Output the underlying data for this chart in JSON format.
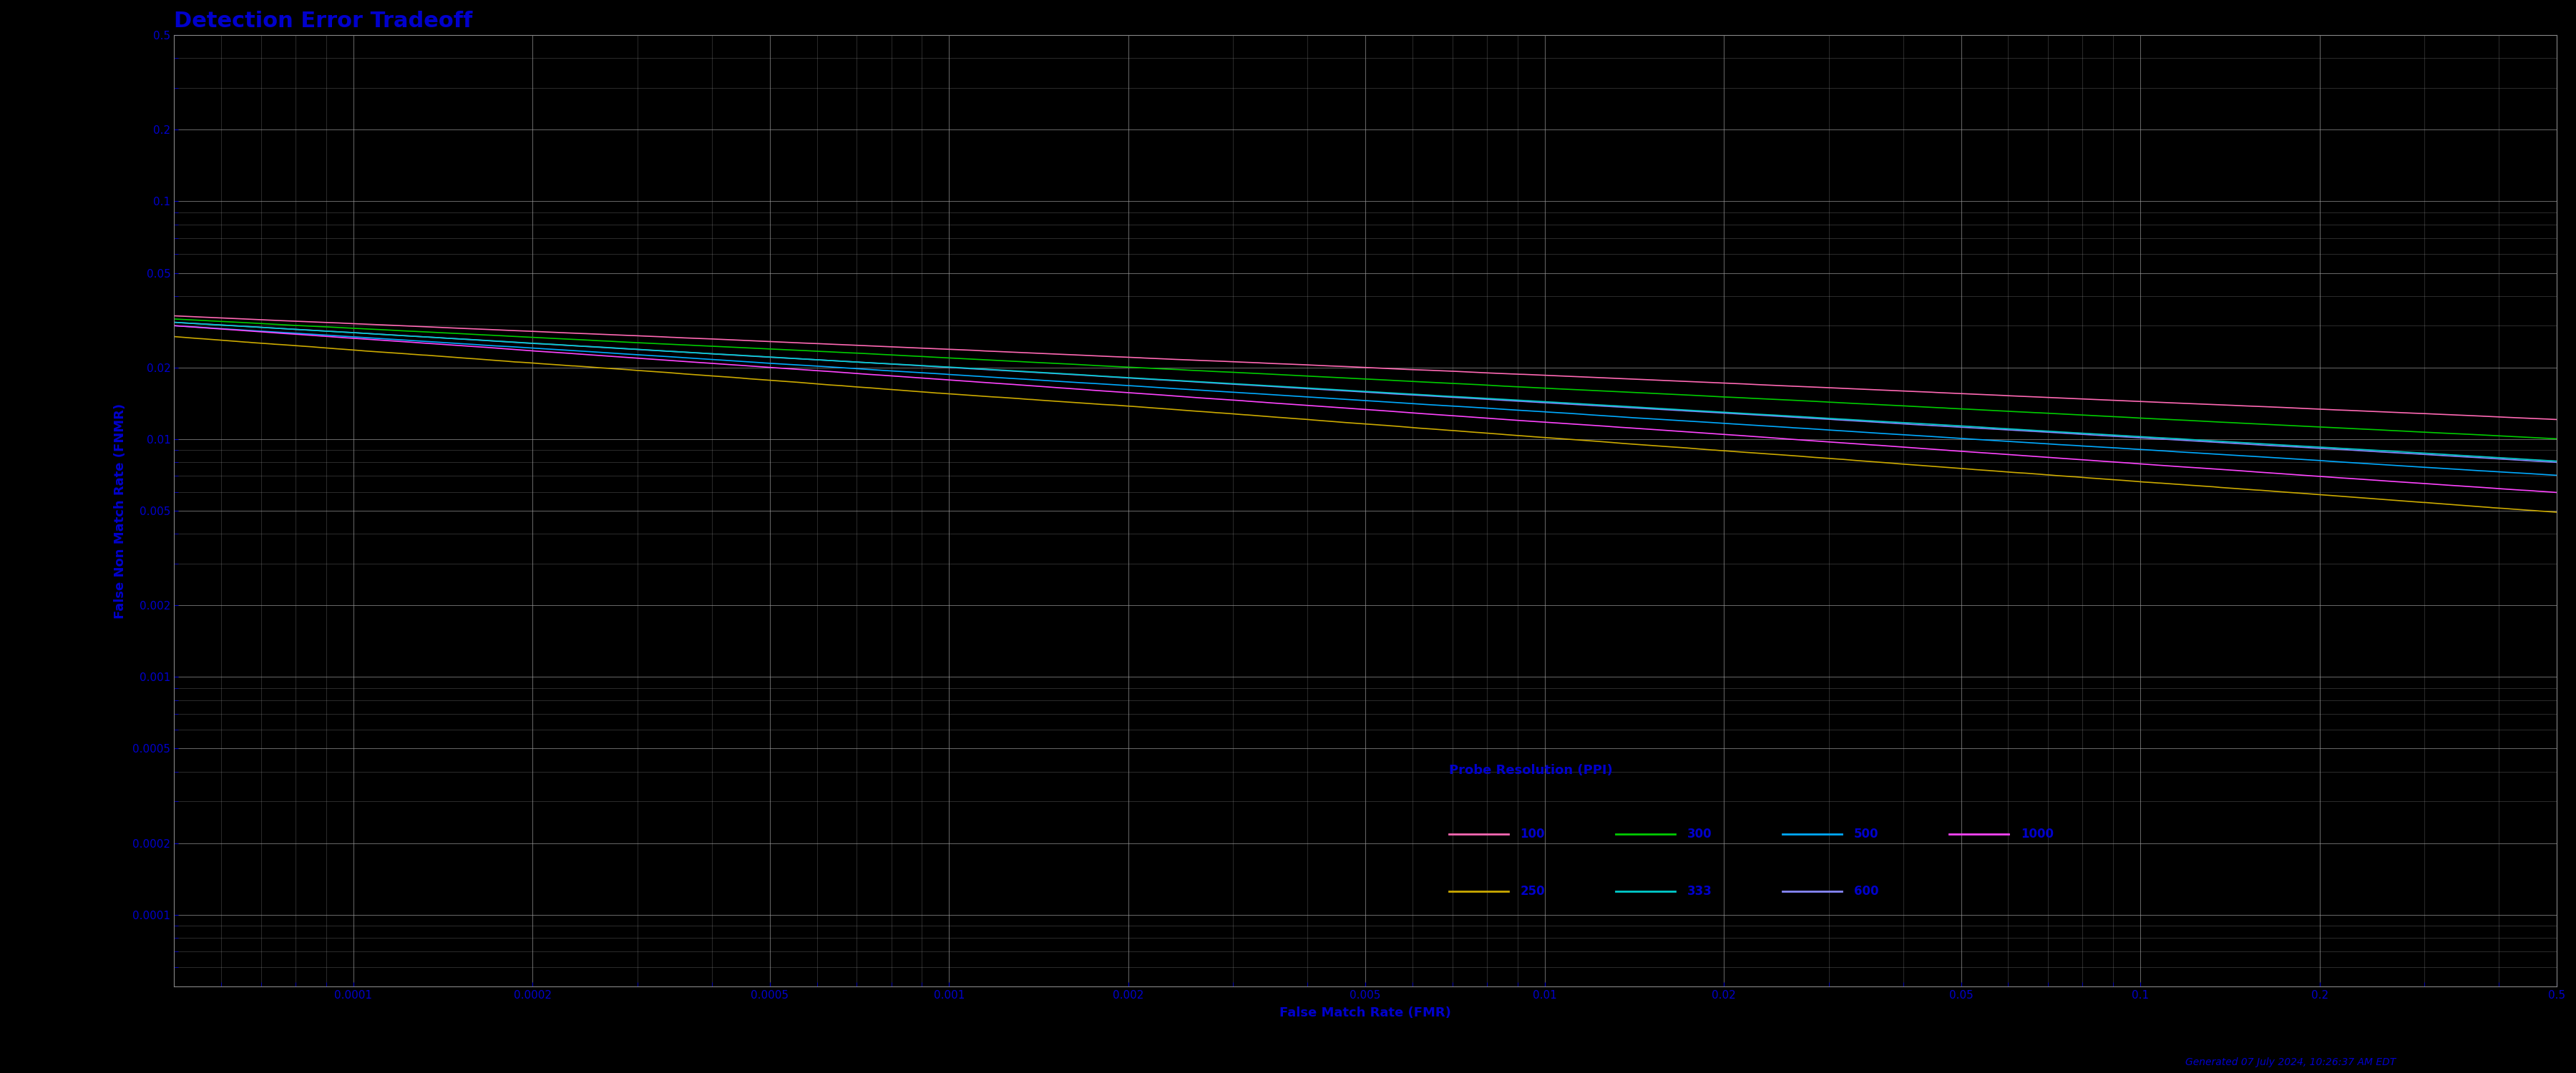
{
  "title": "Detection Error Tradeoff",
  "xlabel": "False Match Rate (FMR)",
  "ylabel": "False Non Match Rate (FNMR)",
  "background_color": "#000000",
  "text_color": "#0000CC",
  "grid_color": "#999999",
  "title_fontsize": 22,
  "label_fontsize": 13,
  "tick_fontsize": 11,
  "legend_label": "Probe Resolution (PPI)",
  "line_colors": {
    "100": "#FF69B4",
    "250": "#CCAA00",
    "300": "#00CC00",
    "333": "#00CCCC",
    "500": "#00AAFF",
    "600": "#8888FF",
    "1000": "#FF44FF"
  },
  "xmin": 5e-05,
  "xmax": 0.5,
  "ymin": 5e-05,
  "ymax": 0.5,
  "xticks": [
    0.0001,
    0.0002,
    0.0005,
    0.001,
    0.002,
    0.005,
    0.01,
    0.02,
    0.05,
    0.1,
    0.2,
    0.5
  ],
  "yticks": [
    0.0001,
    0.0002,
    0.0005,
    0.001,
    0.002,
    0.005,
    0.01,
    0.02,
    0.05,
    0.1,
    0.2,
    0.5
  ],
  "footnote": "Generated 07 July 2024, 10:26:37 AM EDT"
}
